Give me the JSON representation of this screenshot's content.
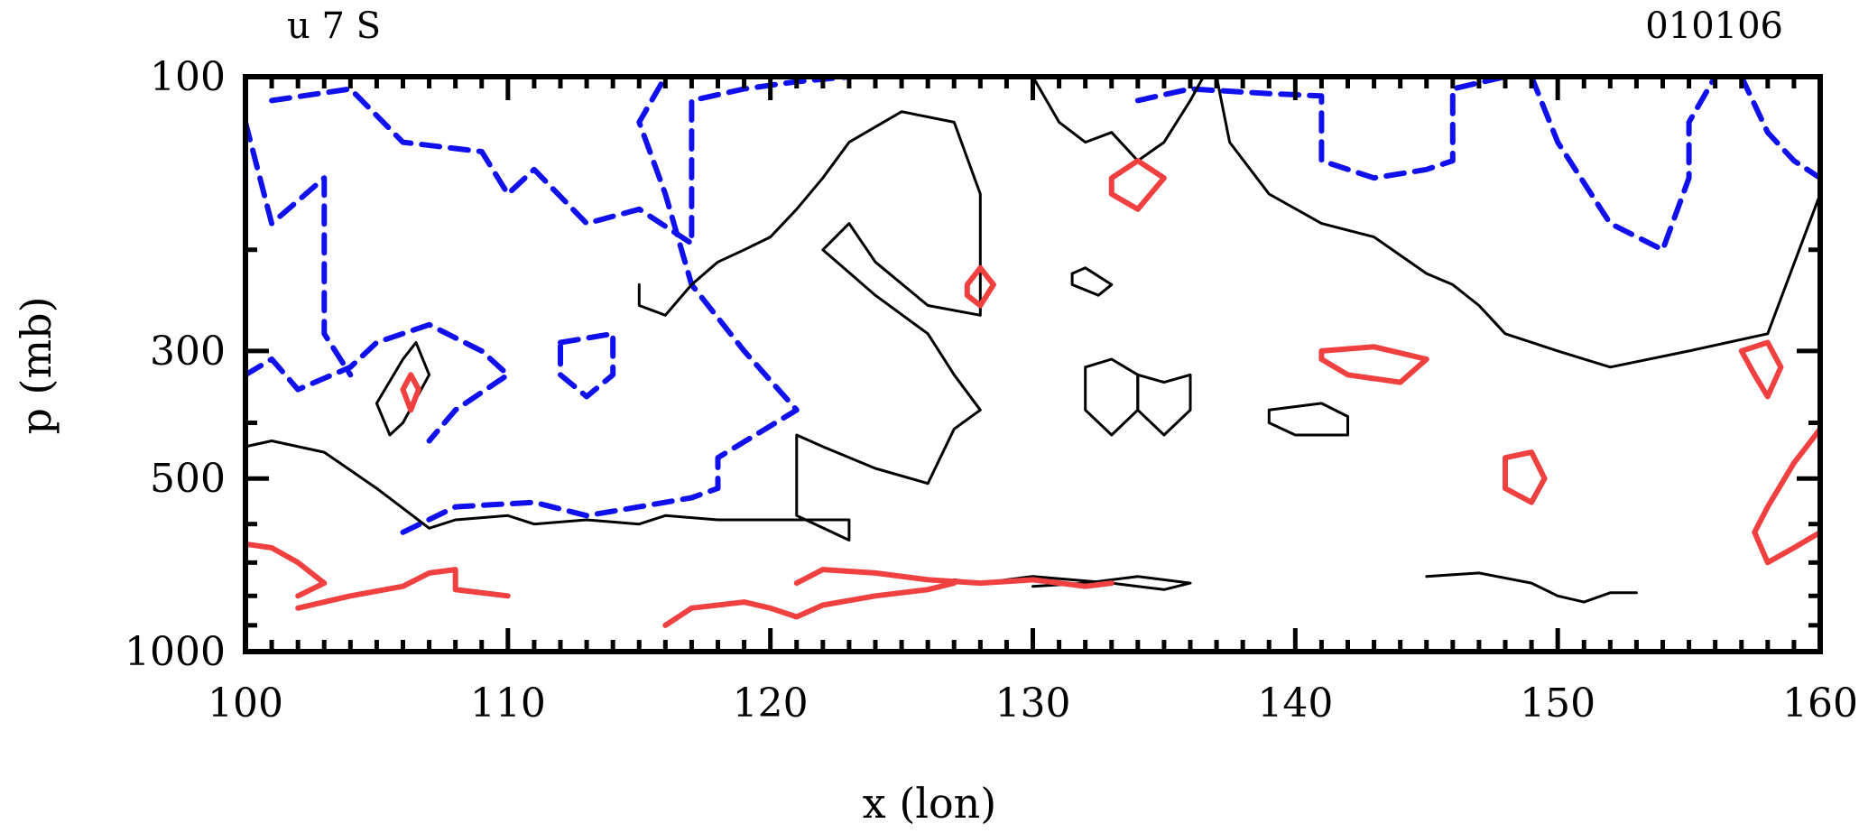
{
  "chart_data": {
    "type": "contour",
    "title": "u 7 S",
    "date_label": "010106",
    "xlabel": "x (lon)",
    "ylabel": "p (mb)",
    "xlim": [
      100,
      160
    ],
    "x_ticks": [
      100,
      110,
      120,
      130,
      140,
      150,
      160
    ],
    "y_scale": "log",
    "ylim": [
      100,
      1000
    ],
    "y_ticks": [
      100,
      300,
      500,
      1000
    ],
    "colors": {
      "negative": "#1010ee",
      "zero": "#000000",
      "positive": "#f04040"
    },
    "contours": [
      {
        "level": "negative",
        "style": "dashed",
        "points": [
          [
            100,
            120
          ],
          [
            101,
            180
          ],
          [
            103,
            150
          ],
          [
            103,
            280
          ],
          [
            104,
            330
          ]
        ]
      },
      {
        "level": "negative",
        "style": "dashed",
        "points": [
          [
            101,
            110
          ],
          [
            104,
            105
          ],
          [
            106,
            130
          ],
          [
            109,
            135
          ],
          [
            110,
            160
          ],
          [
            111,
            145
          ],
          [
            113,
            180
          ],
          [
            115,
            170
          ],
          [
            117,
            195
          ],
          [
            117,
            110
          ],
          [
            119,
            105
          ],
          [
            121,
            102
          ],
          [
            123,
            100
          ]
        ]
      },
      {
        "level": "negative",
        "style": "dashed",
        "points": [
          [
            100,
            330
          ],
          [
            101,
            310
          ],
          [
            102,
            350
          ],
          [
            104,
            320
          ],
          [
            105,
            290
          ],
          [
            107,
            270
          ],
          [
            109,
            300
          ],
          [
            110,
            330
          ],
          [
            108,
            380
          ],
          [
            107,
            430
          ]
        ]
      },
      {
        "level": "negative",
        "style": "dashed",
        "points": [
          [
            106,
            620
          ],
          [
            108,
            560
          ],
          [
            111,
            550
          ],
          [
            113,
            580
          ],
          [
            115,
            560
          ],
          [
            117,
            540
          ],
          [
            118,
            520
          ],
          [
            118,
            460
          ],
          [
            121,
            380
          ],
          [
            119,
            300
          ],
          [
            117,
            230
          ],
          [
            116,
            160
          ],
          [
            115,
            120
          ],
          [
            116,
            100
          ]
        ]
      },
      {
        "level": "negative",
        "style": "dashed",
        "points": [
          [
            112,
            290
          ],
          [
            114,
            280
          ],
          [
            114,
            330
          ],
          [
            113,
            360
          ],
          [
            112,
            330
          ],
          [
            112,
            290
          ]
        ]
      },
      {
        "level": "negative",
        "style": "dashed",
        "points": [
          [
            134,
            110
          ],
          [
            136,
            105
          ],
          [
            139,
            107
          ],
          [
            141,
            108
          ],
          [
            141,
            140
          ],
          [
            143,
            150
          ],
          [
            145,
            145
          ],
          [
            146,
            140
          ],
          [
            146,
            105
          ],
          [
            148,
            100
          ]
        ]
      },
      {
        "level": "negative",
        "style": "dashed",
        "points": [
          [
            149,
            100
          ],
          [
            150,
            130
          ],
          [
            152,
            180
          ],
          [
            154,
            200
          ],
          [
            155,
            150
          ],
          [
            155,
            120
          ],
          [
            156,
            100
          ]
        ]
      },
      {
        "level": "negative",
        "style": "dashed",
        "points": [
          [
            157,
            100
          ],
          [
            158,
            125
          ],
          [
            159,
            140
          ],
          [
            160,
            150
          ]
        ]
      },
      {
        "level": "zero",
        "style": "solid",
        "points": [
          [
            100,
            440
          ],
          [
            101,
            430
          ],
          [
            103,
            450
          ],
          [
            105,
            520
          ],
          [
            107,
            610
          ],
          [
            108,
            590
          ],
          [
            110,
            580
          ],
          [
            111,
            600
          ],
          [
            113,
            590
          ],
          [
            115,
            600
          ],
          [
            116,
            580
          ],
          [
            118,
            590
          ],
          [
            120,
            590
          ],
          [
            123,
            590
          ],
          [
            123,
            640
          ],
          [
            121,
            580
          ],
          [
            121,
            500
          ],
          [
            121,
            420
          ],
          [
            122,
            440
          ],
          [
            124,
            480
          ],
          [
            126,
            510
          ],
          [
            127,
            410
          ],
          [
            128,
            380
          ],
          [
            127,
            330
          ],
          [
            126,
            280
          ],
          [
            124,
            240
          ],
          [
            122,
            200
          ],
          [
            123,
            180
          ],
          [
            124,
            210
          ],
          [
            126,
            250
          ],
          [
            128,
            260
          ],
          [
            128,
            220
          ],
          [
            128,
            160
          ],
          [
            127,
            120
          ],
          [
            125,
            115
          ],
          [
            123,
            130
          ],
          [
            122,
            150
          ],
          [
            121,
            170
          ],
          [
            120,
            190
          ],
          [
            119,
            200
          ],
          [
            118,
            210
          ],
          [
            117,
            230
          ],
          [
            116,
            260
          ],
          [
            115,
            250
          ],
          [
            115,
            230
          ]
        ]
      },
      {
        "level": "zero",
        "style": "solid",
        "points": [
          [
            105,
            370
          ],
          [
            106,
            310
          ],
          [
            106.5,
            290
          ],
          [
            107,
            330
          ],
          [
            106,
            400
          ],
          [
            105.5,
            420
          ],
          [
            105,
            370
          ]
        ]
      },
      {
        "level": "zero",
        "style": "solid",
        "points": [
          [
            130,
            100
          ],
          [
            131,
            120
          ],
          [
            132,
            130
          ],
          [
            133,
            125
          ],
          [
            134,
            140
          ],
          [
            135,
            130
          ],
          [
            136,
            110
          ],
          [
            136.5,
            100
          ]
        ]
      },
      {
        "level": "zero",
        "style": "solid",
        "points": [
          [
            137,
            100
          ],
          [
            137.5,
            130
          ],
          [
            139,
            160
          ],
          [
            141,
            180
          ],
          [
            143,
            190
          ],
          [
            145,
            220
          ],
          [
            146,
            230
          ],
          [
            147,
            250
          ],
          [
            148,
            280
          ],
          [
            150,
            300
          ],
          [
            152,
            320
          ],
          [
            155,
            300
          ],
          [
            158,
            280
          ],
          [
            160,
            160
          ]
        ]
      },
      {
        "level": "zero",
        "style": "solid",
        "points": [
          [
            132,
            320
          ],
          [
            133,
            310
          ],
          [
            134,
            330
          ],
          [
            134,
            380
          ],
          [
            133,
            420
          ],
          [
            132,
            380
          ],
          [
            132,
            320
          ]
        ]
      },
      {
        "level": "zero",
        "style": "solid",
        "points": [
          [
            139,
            380
          ],
          [
            141,
            370
          ],
          [
            142,
            390
          ],
          [
            142,
            420
          ],
          [
            140,
            420
          ],
          [
            139,
            400
          ],
          [
            139,
            380
          ]
        ]
      },
      {
        "level": "zero",
        "style": "solid",
        "points": [
          [
            134,
            330
          ],
          [
            135,
            340
          ],
          [
            136,
            330
          ],
          [
            136,
            380
          ],
          [
            135,
            420
          ],
          [
            134,
            380
          ],
          [
            134,
            330
          ]
        ]
      },
      {
        "level": "zero",
        "style": "solid",
        "points": [
          [
            131.5,
            220
          ],
          [
            132,
            215
          ],
          [
            133,
            230
          ],
          [
            132.5,
            240
          ],
          [
            131.5,
            230
          ],
          [
            131.5,
            220
          ]
        ]
      },
      {
        "level": "zero",
        "style": "solid",
        "points": [
          [
            127,
            750
          ],
          [
            128,
            760
          ],
          [
            130,
            740
          ],
          [
            133,
            760
          ],
          [
            135,
            780
          ],
          [
            136,
            760
          ],
          [
            134,
            740
          ],
          [
            132,
            760
          ],
          [
            130,
            770
          ]
        ]
      },
      {
        "level": "zero",
        "style": "solid",
        "points": [
          [
            145,
            740
          ],
          [
            147,
            730
          ],
          [
            149,
            760
          ],
          [
            150,
            800
          ],
          [
            151,
            820
          ],
          [
            152,
            790
          ],
          [
            153,
            790
          ]
        ]
      },
      {
        "level": "positive",
        "style": "solid",
        "points": [
          [
            100,
            650
          ],
          [
            101,
            660
          ],
          [
            102,
            700
          ],
          [
            103,
            760
          ],
          [
            102,
            800
          ]
        ]
      },
      {
        "level": "positive",
        "style": "solid",
        "points": [
          [
            102,
            840
          ],
          [
            104,
            800
          ],
          [
            106,
            770
          ],
          [
            107,
            730
          ],
          [
            108,
            720
          ],
          [
            108,
            780
          ],
          [
            110,
            800
          ]
        ]
      },
      {
        "level": "positive",
        "style": "solid",
        "points": [
          [
            106,
            350
          ],
          [
            106.3,
            330
          ],
          [
            106.6,
            350
          ],
          [
            106.3,
            380
          ],
          [
            106,
            350
          ]
        ]
      },
      {
        "level": "positive",
        "style": "solid",
        "points": [
          [
            116,
            900
          ],
          [
            117,
            840
          ],
          [
            119,
            820
          ],
          [
            120,
            840
          ],
          [
            121,
            870
          ],
          [
            122,
            830
          ],
          [
            124,
            800
          ],
          [
            126,
            780
          ],
          [
            127,
            760
          ]
        ]
      },
      {
        "level": "positive",
        "style": "solid",
        "points": [
          [
            121,
            760
          ],
          [
            122,
            720
          ],
          [
            124,
            730
          ],
          [
            126,
            750
          ],
          [
            128,
            760
          ],
          [
            130,
            750
          ],
          [
            132,
            770
          ],
          [
            133,
            760
          ]
        ]
      },
      {
        "level": "positive",
        "style": "solid",
        "points": [
          [
            127.5,
            230
          ],
          [
            128,
            215
          ],
          [
            128.5,
            230
          ],
          [
            128,
            250
          ],
          [
            127.5,
            240
          ],
          [
            127.5,
            230
          ]
        ]
      },
      {
        "level": "positive",
        "style": "solid",
        "points": [
          [
            133,
            150
          ],
          [
            134,
            140
          ],
          [
            135,
            150
          ],
          [
            134,
            170
          ],
          [
            133,
            160
          ],
          [
            133,
            150
          ]
        ]
      },
      {
        "level": "positive",
        "style": "solid",
        "points": [
          [
            141,
            300
          ],
          [
            143,
            295
          ],
          [
            145,
            310
          ],
          [
            144,
            340
          ],
          [
            142,
            330
          ],
          [
            141,
            310
          ],
          [
            141,
            300
          ]
        ]
      },
      {
        "level": "positive",
        "style": "solid",
        "points": [
          [
            148,
            460
          ],
          [
            149,
            450
          ],
          [
            149.5,
            500
          ],
          [
            149,
            550
          ],
          [
            148,
            520
          ],
          [
            148,
            460
          ]
        ]
      },
      {
        "level": "positive",
        "style": "solid",
        "points": [
          [
            157,
            300
          ],
          [
            158,
            290
          ],
          [
            158.5,
            320
          ],
          [
            158,
            360
          ],
          [
            157.5,
            330
          ],
          [
            157,
            300
          ]
        ]
      },
      {
        "level": "positive",
        "style": "solid",
        "points": [
          [
            160,
            410
          ],
          [
            159,
            470
          ],
          [
            158,
            560
          ],
          [
            157.5,
            620
          ],
          [
            158,
            700
          ],
          [
            159,
            660
          ],
          [
            160,
            620
          ]
        ]
      }
    ]
  }
}
